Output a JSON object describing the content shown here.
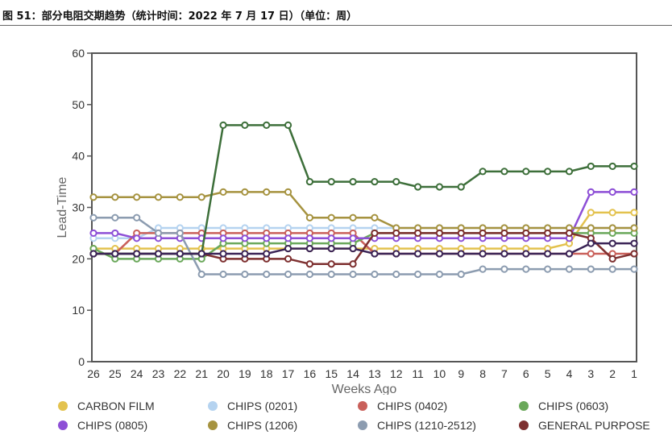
{
  "figure": {
    "title": "图 51：部分电阻交期趋势（统计时间：2022 年 7 月 17 日）（单位：周）"
  },
  "chart_data": {
    "type": "line",
    "xlabel": "Weeks Ago",
    "ylabel": "Lead-Time",
    "ylim": [
      0,
      60
    ],
    "yticks": [
      "0",
      "10",
      "20",
      "30",
      "40",
      "50",
      "60"
    ],
    "categories": [
      "26",
      "25",
      "24",
      "23",
      "22",
      "21",
      "20",
      "19",
      "18",
      "17",
      "16",
      "15",
      "14",
      "13",
      "12",
      "11",
      "10",
      "9",
      "8",
      "7",
      "6",
      "5",
      "4",
      "3",
      "2",
      "1"
    ],
    "grid": false,
    "legend_position": "bottom",
    "series": [
      {
        "name": "CARBON FILM",
        "color": "#e3c24e",
        "values": [
          22,
          22,
          22,
          22,
          22,
          22,
          22,
          22,
          22,
          22,
          22,
          22,
          22,
          22,
          22,
          22,
          22,
          22,
          22,
          22,
          22,
          22,
          23,
          29,
          29,
          29
        ]
      },
      {
        "name": "CHIPS (0201)",
        "color": "#b5d3f0",
        "values": [
          24,
          24,
          24,
          26,
          26,
          26,
          26,
          26,
          26,
          26,
          26,
          26,
          26,
          26,
          26,
          26,
          26,
          26,
          26,
          26,
          26,
          26,
          26,
          26,
          26,
          26
        ]
      },
      {
        "name": "CHIPS (0402)",
        "color": "#c9605a",
        "values": [
          21,
          21,
          25,
          25,
          25,
          25,
          25,
          25,
          25,
          25,
          25,
          25,
          25,
          21,
          21,
          21,
          21,
          21,
          21,
          21,
          21,
          21,
          21,
          21,
          21,
          21
        ]
      },
      {
        "name": "CHIPS (0603)",
        "color": "#6aa85a",
        "values": [
          22,
          20,
          20,
          20,
          20,
          20,
          23,
          23,
          23,
          23,
          23,
          23,
          23,
          25,
          25,
          25,
          25,
          25,
          25,
          25,
          25,
          25,
          25,
          25,
          25,
          25
        ]
      },
      {
        "name": "CHIPS (0805)",
        "color": "#8d4fd6",
        "values": [
          25,
          25,
          24,
          24,
          24,
          24,
          24,
          24,
          24,
          24,
          24,
          24,
          24,
          24,
          24,
          24,
          24,
          24,
          24,
          24,
          24,
          24,
          24,
          33,
          33,
          33
        ]
      },
      {
        "name": "CHIPS (1206)",
        "color": "#a69340",
        "values": [
          32,
          32,
          32,
          32,
          32,
          32,
          33,
          33,
          33,
          33,
          28,
          28,
          28,
          28,
          26,
          26,
          26,
          26,
          26,
          26,
          26,
          26,
          26,
          26,
          26,
          26
        ]
      },
      {
        "name": "CHIPS (1210-2512)",
        "color": "#8c9cb0",
        "values": [
          28,
          28,
          28,
          25,
          25,
          17,
          17,
          17,
          17,
          17,
          17,
          17,
          17,
          17,
          17,
          17,
          17,
          17,
          18,
          18,
          18,
          18,
          18,
          18,
          18,
          18
        ]
      },
      {
        "name": "GENERAL PURPOSE",
        "color": "#7d2f2f",
        "values": [
          21,
          21,
          21,
          21,
          21,
          21,
          20,
          20,
          20,
          20,
          19,
          19,
          19,
          25,
          25,
          25,
          25,
          25,
          25,
          25,
          25,
          25,
          25,
          24,
          20,
          21
        ]
      },
      {
        "name": "",
        "color": "#3d6f3a",
        "values": [
          21,
          21,
          21,
          21,
          21,
          21,
          46,
          46,
          46,
          46,
          35,
          35,
          35,
          35,
          35,
          34,
          34,
          34,
          37,
          37,
          37,
          37,
          37,
          38,
          38,
          38
        ]
      },
      {
        "name": "",
        "color": "#3b2456",
        "values": [
          21,
          21,
          21,
          21,
          21,
          21,
          21,
          21,
          21,
          22,
          22,
          22,
          22,
          21,
          21,
          21,
          21,
          21,
          21,
          21,
          21,
          21,
          21,
          23,
          23,
          23
        ]
      }
    ]
  }
}
